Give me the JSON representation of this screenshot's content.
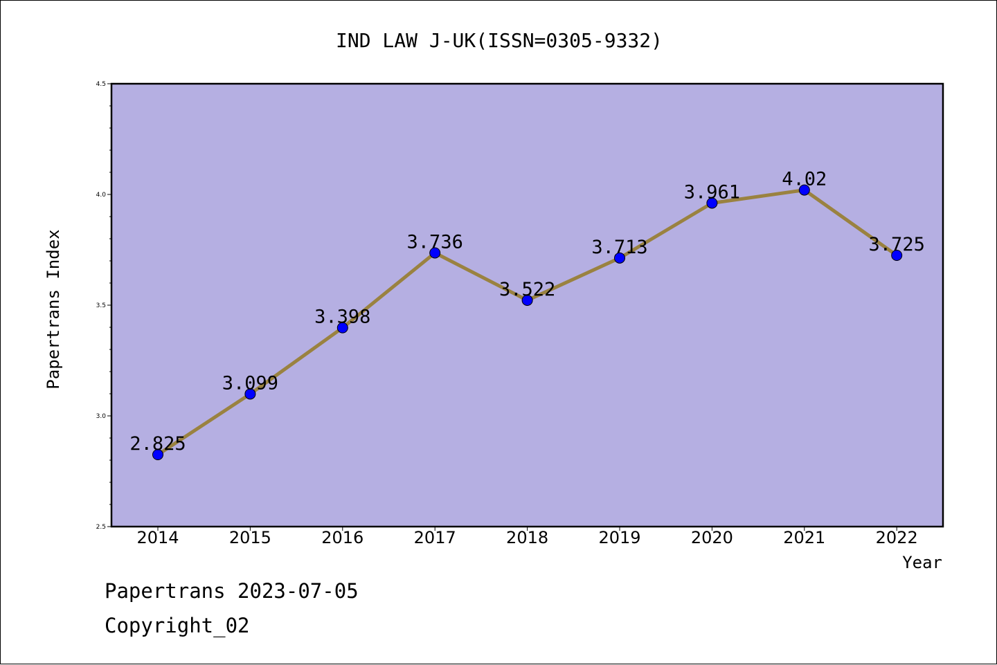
{
  "chart_data": {
    "type": "line",
    "title": "IND LAW J-UK(ISSN=0305-9332)",
    "xlabel": "Year",
    "ylabel": "Papertrans Index",
    "x": [
      "2014",
      "2015",
      "2016",
      "2017",
      "2018",
      "2019",
      "2020",
      "2021",
      "2022"
    ],
    "values": [
      2.825,
      3.099,
      3.398,
      3.736,
      3.522,
      3.713,
      3.961,
      4.02,
      3.725
    ],
    "data_labels": [
      "2.825",
      "3.099",
      "3.398",
      "3.736",
      "3.522",
      "3.713",
      "3.961",
      "4.02",
      "3.725"
    ],
    "ylim": [
      2.5,
      4.5
    ],
    "y_ticks": [
      "2.5",
      "3.0",
      "3.5",
      "4.0",
      "4.5"
    ],
    "grid": false,
    "legend": "none",
    "colors": {
      "plot_background": "#b5afe2",
      "line": "#9a8240",
      "marker": "#0000ff"
    }
  },
  "footer": {
    "date_line": "Papertrans 2023-07-05",
    "copyright": "Copyright_02"
  }
}
